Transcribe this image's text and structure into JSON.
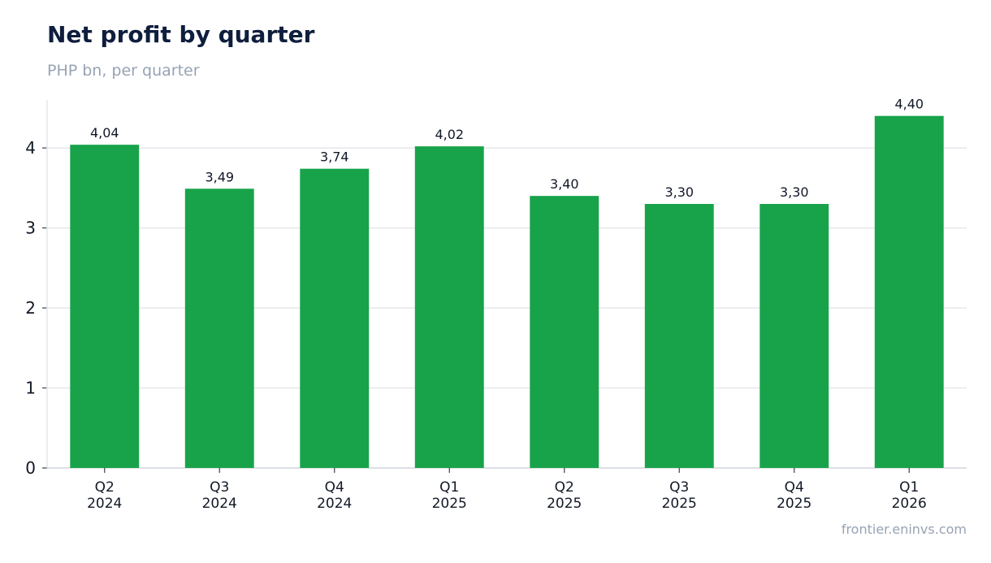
{
  "chart_data": {
    "type": "bar",
    "title": "Net profit by quarter",
    "subtitle": "PHP bn, per quarter",
    "categories": [
      [
        "Q2",
        "2024"
      ],
      [
        "Q3",
        "2024"
      ],
      [
        "Q4",
        "2024"
      ],
      [
        "Q1",
        "2025"
      ],
      [
        "Q2",
        "2025"
      ],
      [
        "Q3",
        "2025"
      ],
      [
        "Q4",
        "2025"
      ],
      [
        "Q1",
        "2026"
      ]
    ],
    "values": [
      4.04,
      3.49,
      3.74,
      4.02,
      3.4,
      3.3,
      3.3,
      4.4
    ],
    "data_labels": [
      "4,04",
      "3,49",
      "3,74",
      "4,02",
      "3,40",
      "3,30",
      "3,30",
      "4,40"
    ],
    "y_ticks": [
      0,
      1,
      2,
      3,
      4
    ],
    "ylim": [
      0,
      4.6
    ],
    "xlabel": "",
    "ylabel": "",
    "grid": "horizontal",
    "legend": "none",
    "bar_color": "#18a34a",
    "source": "frontier.eninvs.com"
  }
}
